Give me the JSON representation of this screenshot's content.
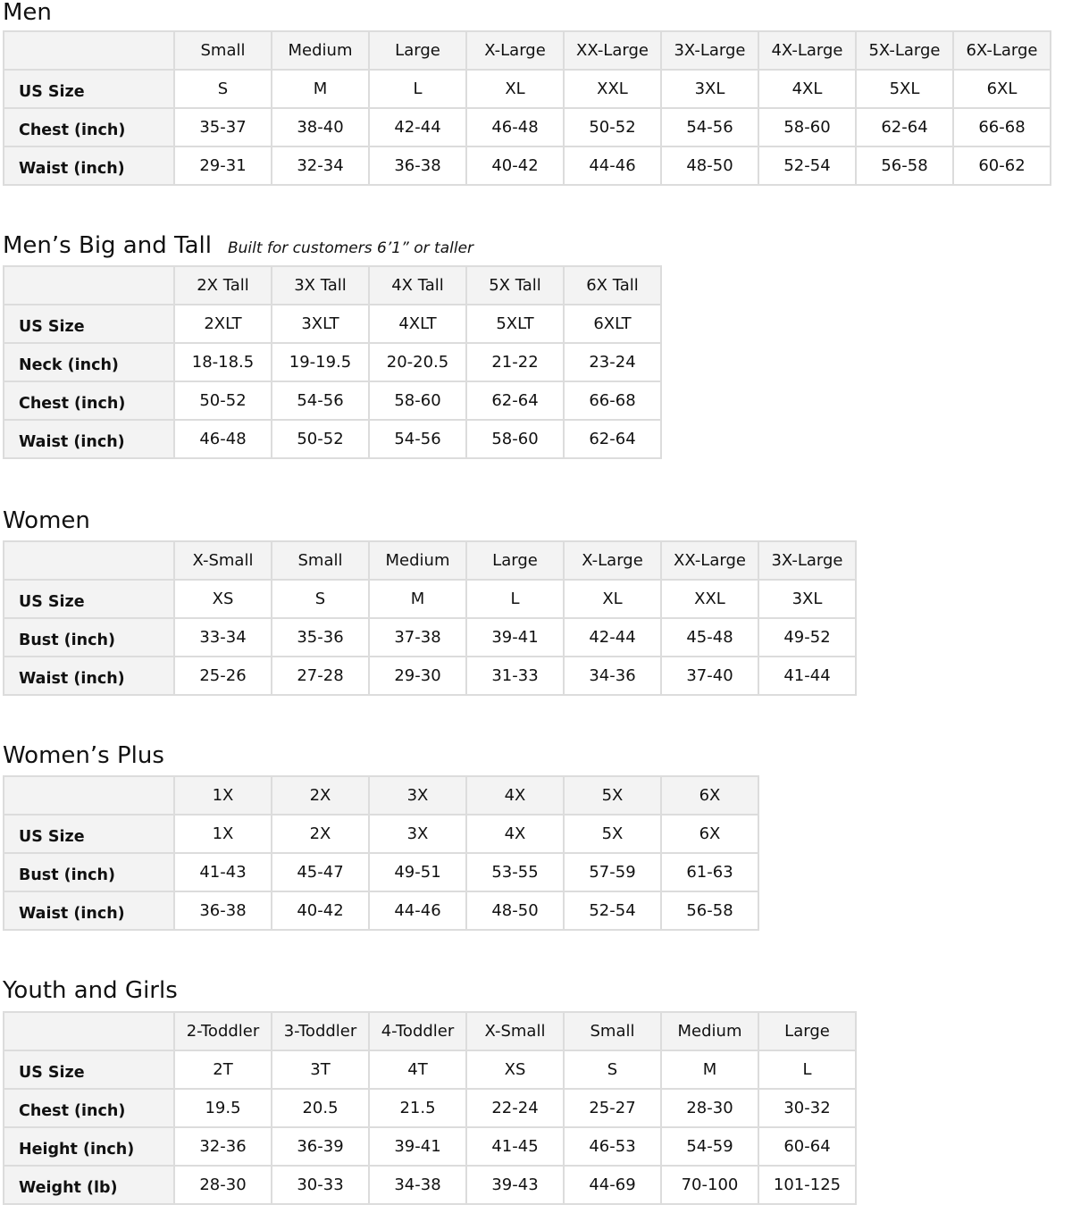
{
  "sections": [
    {
      "title": "Men",
      "subtitle": "",
      "columns": [
        "Small",
        "Medium",
        "Large",
        "X-Large",
        "XX-Large",
        "3X-Large",
        "4X-Large",
        "5X-Large",
        "6X-Large"
      ],
      "rows": [
        {
          "label": "US Size",
          "values": [
            "S",
            "M",
            "L",
            "XL",
            "XXL",
            "3XL",
            "4XL",
            "5XL",
            "6XL"
          ]
        },
        {
          "label": "Chest (inch)",
          "values": [
            "35-37",
            "38-40",
            "42-44",
            "46-48",
            "50-52",
            "54-56",
            "58-60",
            "62-64",
            "66-68"
          ]
        },
        {
          "label": "Waist (inch)",
          "values": [
            "29-31",
            "32-34",
            "36-38",
            "40-42",
            "44-46",
            "48-50",
            "52-54",
            "56-58",
            "60-62"
          ]
        }
      ]
    },
    {
      "title": "Men’s Big and Tall",
      "subtitle": "Built for customers 6’1” or taller",
      "columns": [
        "2X Tall",
        "3X Tall",
        "4X Tall",
        "5X Tall",
        "6X Tall"
      ],
      "rows": [
        {
          "label": "US Size",
          "values": [
            "2XLT",
            "3XLT",
            "4XLT",
            "5XLT",
            "6XLT"
          ]
        },
        {
          "label": "Neck (inch)",
          "values": [
            "18-18.5",
            "19-19.5",
            "20-20.5",
            "21-22",
            "23-24"
          ]
        },
        {
          "label": "Chest (inch)",
          "values": [
            "50-52",
            "54-56",
            "58-60",
            "62-64",
            "66-68"
          ]
        },
        {
          "label": "Waist (inch)",
          "values": [
            "46-48",
            "50-52",
            "54-56",
            "58-60",
            "62-64"
          ]
        }
      ]
    },
    {
      "title": "Women",
      "subtitle": "",
      "columns": [
        "X-Small",
        "Small",
        "Medium",
        "Large",
        "X-Large",
        "XX-Large",
        "3X-Large"
      ],
      "rows": [
        {
          "label": "US Size",
          "values": [
            "XS",
            "S",
            "M",
            "L",
            "XL",
            "XXL",
            "3XL"
          ]
        },
        {
          "label": "Bust (inch)",
          "values": [
            "33-34",
            "35-36",
            "37-38",
            "39-41",
            "42-44",
            "45-48",
            "49-52"
          ]
        },
        {
          "label": "Waist (inch)",
          "values": [
            "25-26",
            "27-28",
            "29-30",
            "31-33",
            "34-36",
            "37-40",
            "41-44"
          ]
        }
      ]
    },
    {
      "title": "Women’s  Plus",
      "subtitle": "",
      "columns": [
        "1X",
        "2X",
        "3X",
        "4X",
        "5X",
        "6X"
      ],
      "rows": [
        {
          "label": "US Size",
          "values": [
            "1X",
            "2X",
            "3X",
            "4X",
            "5X",
            "6X"
          ]
        },
        {
          "label": "Bust (inch)",
          "values": [
            "41-43",
            "45-47",
            "49-51",
            "53-55",
            "57-59",
            "61-63"
          ]
        },
        {
          "label": "Waist (inch)",
          "values": [
            "36-38",
            "40-42",
            "44-46",
            "48-50",
            "52-54",
            "56-58"
          ]
        }
      ]
    },
    {
      "title": "Youth and Girls",
      "subtitle": "",
      "columns": [
        "2-Toddler",
        "3-Toddler",
        "4-Toddler",
        "X-Small",
        "Small",
        "Medium",
        "Large"
      ],
      "rows": [
        {
          "label": "US Size",
          "values": [
            "2T",
            "3T",
            "4T",
            "XS",
            "S",
            "M",
            "L"
          ]
        },
        {
          "label": "Chest (inch)",
          "values": [
            "19.5",
            "20.5",
            "21.5",
            "22-24",
            "25-27",
            "28-30",
            "30-32"
          ]
        },
        {
          "label": "Height (inch)",
          "values": [
            "32-36",
            "36-39",
            "39-41",
            "41-45",
            "46-53",
            "54-59",
            "60-64"
          ]
        },
        {
          "label": "Weight (lb)",
          "values": [
            "28-30",
            "30-33",
            "34-38",
            "39-43",
            "44-69",
            "70-100",
            "101-125"
          ]
        }
      ]
    }
  ]
}
